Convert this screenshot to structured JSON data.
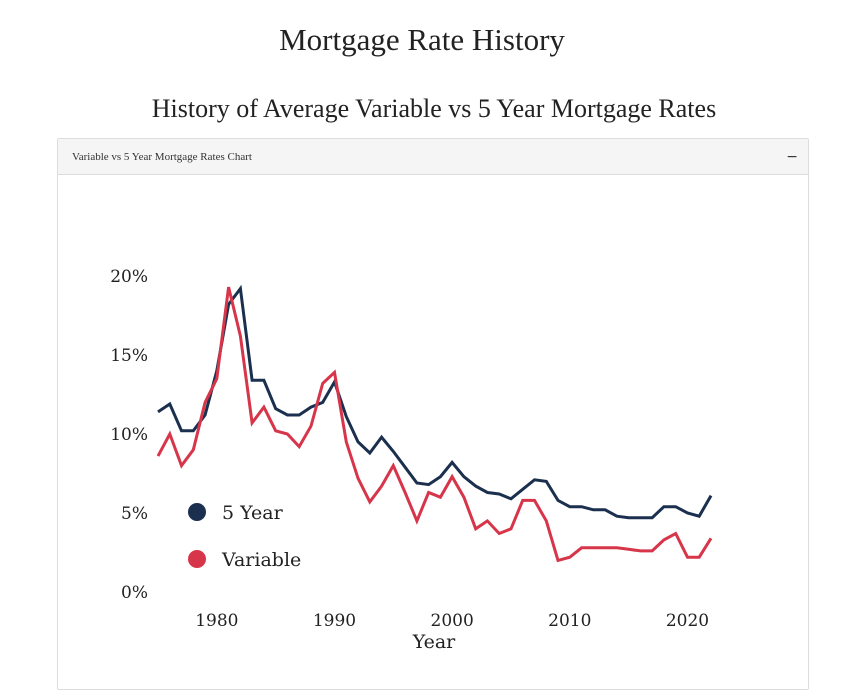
{
  "page": {
    "title": "Mortgage Rate History",
    "section_title": "History of Average Variable vs 5 Year Mortgage Rates"
  },
  "panel": {
    "title": "Variable vs 5 Year Mortgage Rates Chart",
    "collapse_symbol": "−",
    "collapse_icon": "minus-icon"
  },
  "chart_data": {
    "type": "line",
    "xlabel": "Year",
    "ylabel": "",
    "xlim": [
      1975,
      2022
    ],
    "ylim": [
      0,
      20
    ],
    "x_ticks": [
      1980,
      1990,
      2000,
      2010,
      2020
    ],
    "y_ticks": [
      0,
      5,
      10,
      15,
      20
    ],
    "y_tick_labels": [
      "0%",
      "5%",
      "10%",
      "15%",
      "20%"
    ],
    "grid": false,
    "legend_position": "bottom-left",
    "x": [
      1975,
      1976,
      1977,
      1978,
      1979,
      1980,
      1981,
      1982,
      1983,
      1984,
      1985,
      1986,
      1987,
      1988,
      1989,
      1990,
      1991,
      1992,
      1993,
      1994,
      1995,
      1996,
      1997,
      1998,
      1999,
      2000,
      2001,
      2002,
      2003,
      2004,
      2005,
      2006,
      2007,
      2008,
      2009,
      2010,
      2011,
      2012,
      2013,
      2014,
      2015,
      2016,
      2017,
      2018,
      2019,
      2020,
      2021,
      2022
    ],
    "series": [
      {
        "name": "5 Year",
        "color": "#1b2f4e",
        "values": [
          11.4,
          11.9,
          10.2,
          10.2,
          11.2,
          14.0,
          18.2,
          19.2,
          13.4,
          13.4,
          11.6,
          11.2,
          11.2,
          11.7,
          12.0,
          13.3,
          11.1,
          9.5,
          8.8,
          9.8,
          8.9,
          7.9,
          6.9,
          6.8,
          7.3,
          8.2,
          7.3,
          6.7,
          6.3,
          6.2,
          5.9,
          6.5,
          7.1,
          7.0,
          5.8,
          5.4,
          5.4,
          5.2,
          5.2,
          4.8,
          4.7,
          4.7,
          4.7,
          5.4,
          5.4,
          5.0,
          4.8,
          6.1
        ]
      },
      {
        "name": "Variable",
        "color": "#d7354a",
        "values": [
          8.6,
          10.0,
          8.0,
          9.0,
          12.0,
          13.5,
          19.3,
          16.2,
          10.7,
          11.7,
          10.2,
          10.0,
          9.2,
          10.5,
          13.2,
          13.9,
          9.5,
          7.2,
          5.7,
          6.7,
          8.0,
          6.3,
          4.5,
          6.3,
          6.0,
          7.3,
          6.0,
          4.0,
          4.5,
          3.7,
          4.0,
          5.8,
          5.8,
          4.5,
          2.0,
          2.2,
          2.8,
          2.8,
          2.8,
          2.8,
          2.7,
          2.6,
          2.6,
          3.3,
          3.7,
          2.2,
          2.2,
          3.4
        ]
      }
    ]
  }
}
